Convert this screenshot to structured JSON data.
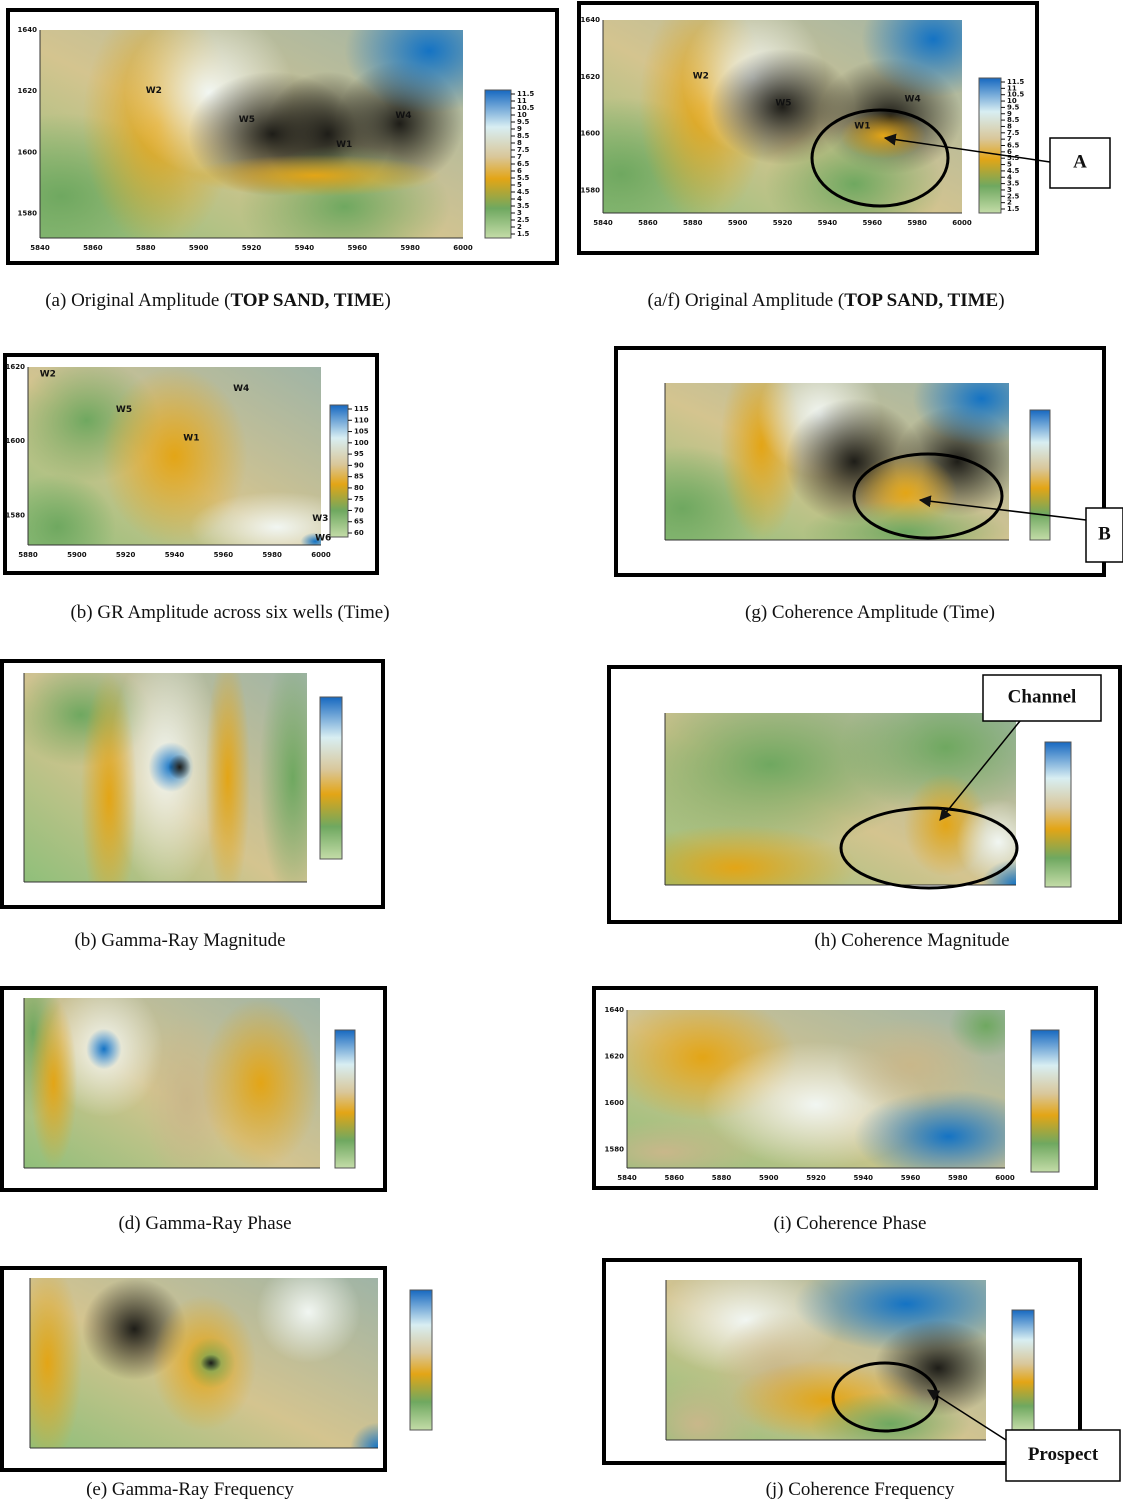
{
  "panels": [
    {
      "caption": "(a) Original Amplitude (",
      "caption_bold": "TOP SAND, TIME",
      "caption_end": ")",
      "yticks": [
        1640,
        1620,
        1600,
        1580
      ],
      "xticks": [
        5840,
        5860,
        5880,
        5900,
        5920,
        5940,
        5960,
        5980,
        6000
      ],
      "colorbar_ticks": [
        11.5,
        11,
        10.5,
        10,
        9.5,
        9,
        8.5,
        8,
        7.5,
        7,
        6.5,
        6,
        5.5,
        5,
        4.5,
        4,
        3.5,
        3,
        2.5,
        2,
        1.5
      ],
      "wells": [
        "W2",
        "W5",
        "W4",
        "W1"
      ]
    },
    {
      "caption": "(a/f) Original Amplitude (",
      "caption_bold": "TOP SAND, TIME",
      "caption_end": ")",
      "yticks": [
        1640,
        1620,
        1600,
        1580
      ],
      "xticks": [
        5840,
        5860,
        5880,
        5900,
        5920,
        5940,
        5960,
        5980,
        6000
      ],
      "colorbar_ticks": [
        11.5,
        11,
        10.5,
        10,
        9.5,
        9,
        8.5,
        8,
        7.5,
        7,
        6.5,
        6,
        5.5,
        5,
        4.5,
        4,
        3.5,
        3,
        2.5,
        2,
        1.5
      ],
      "wells": [
        "W2",
        "W5",
        "W4",
        "W1"
      ],
      "annotation": "A"
    },
    {
      "caption": "(b) GR Amplitude across six wells (Time)",
      "yticks": [
        1620,
        1600,
        1580
      ],
      "xticks": [
        5880,
        5900,
        5920,
        5940,
        5960,
        5980,
        6000
      ],
      "colorbar_ticks": [
        115,
        110,
        105,
        100,
        95,
        90,
        85,
        80,
        75,
        70,
        65,
        60
      ],
      "wells": [
        "W2",
        "W5",
        "W1",
        "W4",
        "W3",
        "W6"
      ]
    },
    {
      "caption": "(g) Coherence Amplitude (Time)",
      "annotation": "B"
    },
    {
      "caption": "(b) Gamma-Ray  Magnitude"
    },
    {
      "caption": "(h) Coherence Magnitude",
      "annotation": "Channel"
    },
    {
      "caption": "(d) Gamma-Ray Phase"
    },
    {
      "caption": "(i) Coherence Phase",
      "yticks": [
        1640,
        1620,
        1600,
        1580
      ],
      "xticks": [
        5840,
        5860,
        5880,
        5900,
        5920,
        5940,
        5960,
        5980,
        6000
      ]
    },
    {
      "caption": "(e) Gamma-Ray Frequency"
    },
    {
      "caption": "(j) Coherence Frequency",
      "annotation": "Prospect"
    }
  ]
}
